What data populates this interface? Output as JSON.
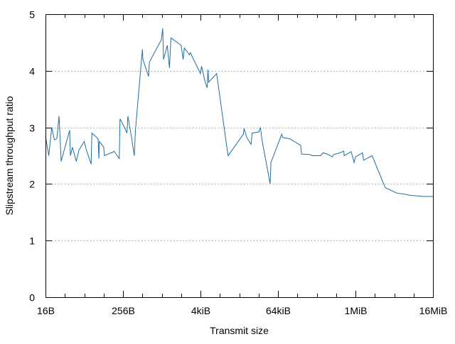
{
  "chart_data": {
    "type": "line",
    "title": "",
    "xlabel": "Transmit size",
    "ylabel": "Slipstream throughput ratio",
    "x_scale": "log2",
    "x_unit": "bytes",
    "xlim": [
      16,
      16777216
    ],
    "ylim": [
      0,
      5
    ],
    "yticks": [
      "0",
      "1",
      "2",
      "3",
      "4",
      "5"
    ],
    "xticks": [
      {
        "value": 16,
        "label": "16B"
      },
      {
        "value": 256,
        "label": "256B"
      },
      {
        "value": 4096,
        "label": "4kiB"
      },
      {
        "value": 65536,
        "label": "64kiB"
      },
      {
        "value": 1048576,
        "label": "1MiB"
      },
      {
        "value": 16777216,
        "label": "16MiB"
      }
    ],
    "grid": true,
    "legend": "none",
    "series": [
      {
        "name": "Slipstream throughput ratio",
        "color": "#1f6ea3",
        "points": [
          [
            16,
            2.85
          ],
          [
            18,
            2.5
          ],
          [
            20,
            3.0
          ],
          [
            22,
            2.78
          ],
          [
            24,
            2.8
          ],
          [
            26,
            3.2
          ],
          [
            28,
            2.4
          ],
          [
            33,
            2.7
          ],
          [
            38,
            2.95
          ],
          [
            39,
            2.5
          ],
          [
            42,
            2.65
          ],
          [
            48,
            2.4
          ],
          [
            53,
            2.6
          ],
          [
            64,
            2.75
          ],
          [
            69,
            2.6
          ],
          [
            82,
            2.35
          ],
          [
            84,
            2.9
          ],
          [
            105,
            2.8
          ],
          [
            108,
            2.45
          ],
          [
            110,
            2.75
          ],
          [
            128,
            2.65
          ],
          [
            132,
            2.5
          ],
          [
            165,
            2.55
          ],
          [
            174,
            2.55
          ],
          [
            186,
            2.58
          ],
          [
            208,
            2.5
          ],
          [
            224,
            2.45
          ],
          [
            230,
            3.15
          ],
          [
            270,
            3.0
          ],
          [
            295,
            2.9
          ],
          [
            305,
            3.2
          ],
          [
            350,
            2.8
          ],
          [
            384,
            2.5
          ],
          [
            400,
            2.95
          ],
          [
            512,
            4.38
          ],
          [
            522,
            4.2
          ],
          [
            640,
            3.9
          ],
          [
            658,
            4.15
          ],
          [
            1010,
            4.55
          ],
          [
            1060,
            4.75
          ],
          [
            1090,
            4.2
          ],
          [
            1250,
            4.45
          ],
          [
            1350,
            4.05
          ],
          [
            1420,
            4.58
          ],
          [
            2048,
            4.45
          ],
          [
            2200,
            4.2
          ],
          [
            2300,
            4.4
          ],
          [
            2500,
            4.35
          ],
          [
            2750,
            4.28
          ],
          [
            2850,
            4.32
          ],
          [
            4096,
            3.95
          ],
          [
            4250,
            4.08
          ],
          [
            4900,
            3.78
          ],
          [
            5200,
            3.7
          ],
          [
            5350,
            4.02
          ],
          [
            5500,
            3.8
          ],
          [
            7300,
            3.95
          ],
          [
            11000,
            2.5
          ],
          [
            19000,
            2.88
          ],
          [
            19500,
            2.98
          ],
          [
            21500,
            2.82
          ],
          [
            25000,
            2.7
          ],
          [
            26000,
            2.9
          ],
          [
            33000,
            2.92
          ],
          [
            35000,
            3.0
          ],
          [
            37000,
            2.78
          ],
          [
            49500,
            2.0
          ],
          [
            51000,
            2.38
          ],
          [
            75000,
            2.88
          ],
          [
            78000,
            2.82
          ],
          [
            100000,
            2.8
          ],
          [
            148000,
            2.68
          ],
          [
            152000,
            2.53
          ],
          [
            205000,
            2.52
          ],
          [
            225000,
            2.5
          ],
          [
            300000,
            2.5
          ],
          [
            330000,
            2.55
          ],
          [
            380000,
            2.53
          ],
          [
            460000,
            2.48
          ],
          [
            480000,
            2.52
          ],
          [
            600000,
            2.55
          ],
          [
            690000,
            2.58
          ],
          [
            700000,
            2.5
          ],
          [
            900000,
            2.57
          ],
          [
            1000000,
            2.38
          ],
          [
            1050000,
            2.48
          ],
          [
            1350000,
            2.55
          ],
          [
            1400000,
            2.42
          ],
          [
            1900000,
            2.5
          ],
          [
            3000000,
            1.95
          ],
          [
            3100000,
            1.93
          ],
          [
            4600000,
            1.84
          ],
          [
            6000000,
            1.82
          ],
          [
            7500000,
            1.8
          ],
          [
            12000000,
            1.78
          ],
          [
            16777216,
            1.78
          ]
        ]
      }
    ]
  }
}
